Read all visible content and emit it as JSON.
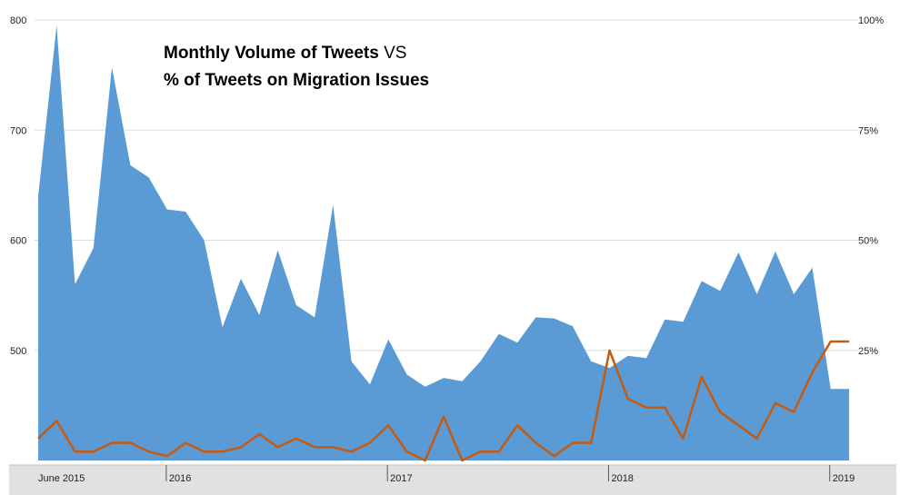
{
  "chart_data": {
    "type": "area",
    "title_line1_bold": "Monthly Volume of Tweets",
    "title_line1_tail": " VS",
    "title_line2": "% of Tweets on Migration Issues",
    "x_axis_labels": [
      "June 2015",
      "2016",
      "2017",
      "2018",
      "2019"
    ],
    "y_left": {
      "min": 400,
      "max": 800,
      "ticks": [
        "500",
        "600",
        "700",
        "800"
      ],
      "tick_values": [
        500,
        600,
        700,
        800
      ]
    },
    "y_right": {
      "min": 0,
      "max": 100,
      "ticks": [
        "25%",
        "50%",
        "75%",
        "100%"
      ],
      "tick_values": [
        25,
        50,
        75,
        100
      ]
    },
    "months": [
      "2015-06",
      "2015-07",
      "2015-08",
      "2015-09",
      "2015-10",
      "2015-11",
      "2015-12",
      "2016-01",
      "2016-02",
      "2016-03",
      "2016-04",
      "2016-05",
      "2016-06",
      "2016-07",
      "2016-08",
      "2016-09",
      "2016-10",
      "2016-11",
      "2016-12",
      "2017-01",
      "2017-02",
      "2017-03",
      "2017-04",
      "2017-05",
      "2017-06",
      "2017-07",
      "2017-08",
      "2017-09",
      "2017-10",
      "2017-11",
      "2017-12",
      "2018-01",
      "2018-02",
      "2018-03",
      "2018-04",
      "2018-05",
      "2018-06",
      "2018-07",
      "2018-08",
      "2018-09",
      "2018-10",
      "2018-11",
      "2018-12",
      "2019-01",
      "2019-02"
    ],
    "series": [
      {
        "kind": "area",
        "axis": "left",
        "color": "#5B9BD5",
        "values": [
          640,
          795,
          560,
          593,
          757,
          668,
          657,
          628,
          626,
          600,
          521,
          565,
          532,
          591,
          541,
          530,
          632,
          490,
          469,
          510,
          478,
          467,
          475,
          472,
          490,
          515,
          507,
          530,
          529,
          522,
          490,
          484,
          495,
          493,
          528,
          526,
          563,
          554,
          589,
          551,
          590,
          551,
          575,
          465,
          465
        ]
      },
      {
        "kind": "line",
        "axis": "right",
        "color": "#C55A11",
        "values": [
          5,
          9,
          2,
          2,
          4,
          4,
          2,
          1,
          4,
          2,
          2,
          3,
          6,
          3,
          5,
          3,
          3,
          2,
          4,
          8,
          2,
          0,
          10,
          0,
          2,
          2,
          8,
          4,
          1,
          4,
          4,
          25,
          14,
          12,
          12,
          5,
          19,
          11,
          8,
          5,
          13,
          11,
          20,
          27,
          27
        ]
      }
    ],
    "grid": true
  }
}
